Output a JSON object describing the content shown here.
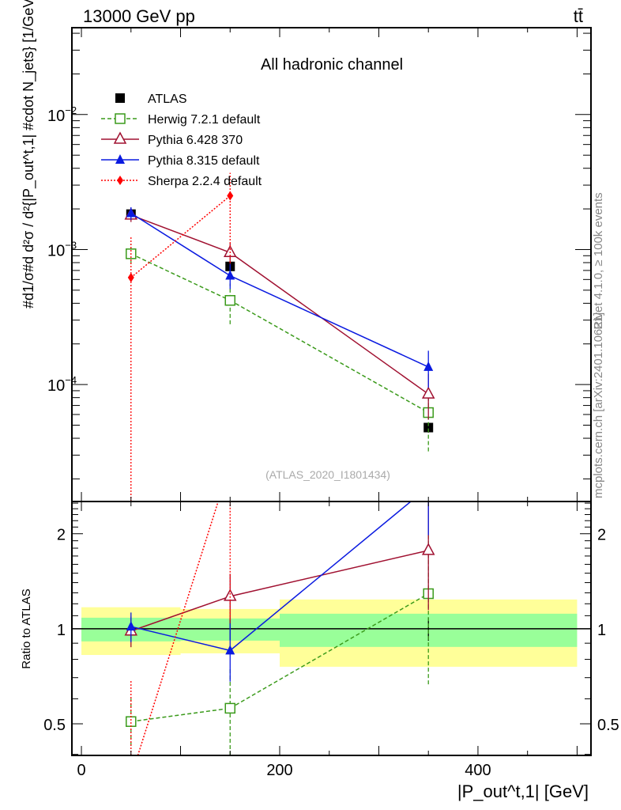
{
  "header": {
    "energy": "13000 GeV pp",
    "process": "tt̄"
  },
  "side_text": {
    "rivet": "Rivet 4.1.0, ≥ 100k events",
    "mcplots": "mcplots.cern.ch [arXiv:2401.10621]"
  },
  "chart_data": [
    {
      "type": "line",
      "title": "All hadronic channel",
      "watermark": "(ATLAS_2020_I1801434)",
      "ylabel": "#d1/σ#d d²σ / d²{|P_out^t,1| #cdot N_jets} [1/GeV]",
      "yscale": "log",
      "xlim": [
        -9.6,
        514
      ],
      "ylim": [
        1.36e-05,
        0.044
      ],
      "ytick_labels": [
        {
          "v": 0.0001,
          "t": "10",
          "e": "−4"
        },
        {
          "v": 0.001,
          "t": "10",
          "e": "−3"
        },
        {
          "v": 0.01,
          "t": "10",
          "e": "−2"
        }
      ],
      "legend_position": "top-left",
      "x": [
        50,
        150,
        350
      ],
      "bins": [
        [
          0,
          100
        ],
        [
          100,
          200
        ],
        [
          200,
          500
        ]
      ],
      "series": [
        {
          "name": "ATLAS",
          "color": "#000000",
          "marker": "square-filled",
          "dash": "",
          "values": [
            0.00183,
            0.00075,
            4.8e-05
          ],
          "err_lo": [
            0.0017,
            0.00069,
            4.4e-05
          ],
          "err_hi": [
            0.00197,
            0.00081,
            5.2e-05
          ]
        },
        {
          "name": "Herwig 7.2.1 default",
          "color": "#3a9a1a",
          "marker": "square-open",
          "dash": "5,3",
          "values": [
            0.00093,
            0.00042,
            6.2e-05
          ],
          "err_lo": [
            0.00078,
            0.00028,
            3.2e-05
          ],
          "err_hi": [
            0.0011,
            0.00056,
            9.5e-05
          ]
        },
        {
          "name": "Pythia 6.428 370",
          "color": "#a01030",
          "marker": "triangle-open",
          "dash": "",
          "values": [
            0.0018,
            0.00095,
            8.5e-05
          ],
          "err_lo": [
            0.0016,
            0.00078,
            5.5e-05
          ],
          "err_hi": [
            0.002,
            0.00112,
            0.00012
          ]
        },
        {
          "name": "Pythia 8.315 default",
          "color": "#0a1ae0",
          "marker": "triangle-filled",
          "dash": "",
          "values": [
            0.00186,
            0.00064,
            0.000135
          ],
          "err_lo": [
            0.00166,
            0.00051,
            9.5e-05
          ],
          "err_hi": [
            0.00206,
            0.00078,
            0.000178
          ]
        },
        {
          "name": "Sherpa 2.2.4 default",
          "color": "#ff0000",
          "marker": "diamond",
          "dash": "2,2",
          "values": [
            0.00062,
            0.0025,
            null
          ],
          "err_lo": [
            1e-06,
            0.0008,
            null
          ],
          "err_hi": [
            0.00125,
            0.0037,
            null
          ]
        }
      ]
    },
    {
      "type": "line",
      "ylabel": "Ratio to ATLAS",
      "xlabel": "|P_out^t,1| [GeV]",
      "yscale": "log",
      "xlim": [
        -9.6,
        514
      ],
      "ylim": [
        0.397,
        2.53
      ],
      "ytick_labels": [
        {
          "v": 0.5,
          "t": "0.5"
        },
        {
          "v": 1,
          "t": "1"
        },
        {
          "v": 2,
          "t": "2"
        }
      ],
      "xtick_labels": [
        {
          "v": 0,
          "t": "0"
        },
        {
          "v": 200,
          "t": "200"
        },
        {
          "v": 400,
          "t": "400"
        }
      ],
      "band_stat": [
        [
          0.912,
          1.084
        ],
        [
          0.917,
          1.078
        ],
        [
          0.876,
          1.116
        ]
      ],
      "band_total": [
        [
          0.826,
          1.17
        ],
        [
          0.836,
          1.155
        ],
        [
          0.758,
          1.238
        ]
      ],
      "band_colors": {
        "stat": "#99ff99",
        "total": "#ffff99"
      }
    }
  ]
}
